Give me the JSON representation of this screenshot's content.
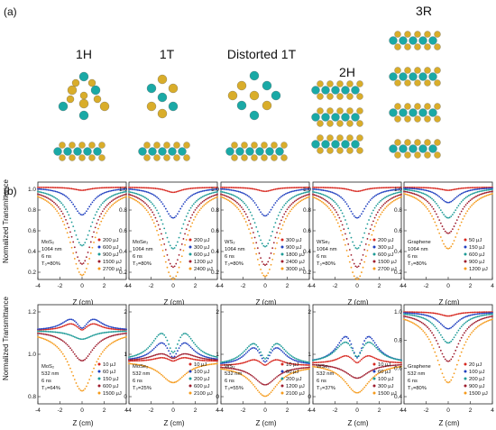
{
  "figure": {
    "panel_a": "(a)",
    "panel_b": "(b)",
    "structures": [
      "1H",
      "1T",
      "Distorted 1T",
      "2H",
      "3R"
    ],
    "colors": {
      "metal": "#1aa9a6",
      "chalcogen": "#d9ad2a"
    }
  },
  "axes": {
    "ylabel": "Normalized Transmittance",
    "xlabel": "Z (cm)",
    "xticks": [
      "-4",
      "-2",
      "0",
      "2",
      "4"
    ],
    "row1_yticks": [
      "1.0",
      "0.8",
      "0.6",
      "0.4",
      "0.2"
    ],
    "row2_yticks_a": [
      "1.2",
      "1.0",
      "0.8"
    ],
    "row2_yticks_b": [
      "2",
      "1",
      "0"
    ],
    "row2_yticks_d": [
      "2",
      "1",
      "0"
    ],
    "row2_yticks_e": [
      "1.0",
      "0.8",
      "0.6",
      "0.4"
    ]
  },
  "series_colors": [
    "#d7261e",
    "#1f3fbf",
    "#1c9a96",
    "#9e1b2c",
    "#f59a1a"
  ],
  "chart_data": [
    {
      "type": "scatter",
      "row": 1,
      "info": [
        "MoS₂",
        "1064 nm",
        "6 ns",
        "T₀=80%"
      ],
      "legend": [
        "200 μJ",
        "600 μJ",
        "900 μJ",
        "1500 μJ",
        "2700 μJ"
      ],
      "depths": [
        0.03,
        0.27,
        0.57,
        0.75,
        0.86
      ],
      "ylim": [
        0.1,
        1.05
      ],
      "xlim": [
        -4,
        4
      ],
      "reverse": false
    },
    {
      "type": "scatter",
      "row": 1,
      "info": [
        "MoSe₂",
        "1064 nm",
        "6 ns",
        "T₀=80%"
      ],
      "legend": [
        "200 μJ",
        "300 μJ",
        "600 μJ",
        "1200 μJ",
        "2400 μJ"
      ],
      "depths": [
        0.05,
        0.3,
        0.6,
        0.78,
        0.9
      ],
      "ylim": [
        0.1,
        1.05
      ],
      "xlim": [
        -4,
        4
      ],
      "reverse": false
    },
    {
      "type": "scatter",
      "row": 1,
      "info": [
        "WS₂",
        "1064 nm",
        "6 ns",
        "T₀=80%"
      ],
      "legend": [
        "300 μJ",
        "900 μJ",
        "1800 μJ",
        "2400 μJ",
        "3000 μJ"
      ],
      "depths": [
        0.04,
        0.28,
        0.58,
        0.76,
        0.87
      ],
      "ylim": [
        0.1,
        1.05
      ],
      "xlim": [
        -4,
        4
      ],
      "reverse": false
    },
    {
      "type": "scatter",
      "row": 1,
      "info": [
        "WSe₂",
        "1064 nm",
        "6 ns",
        "T₀=80%"
      ],
      "legend": [
        "200 μJ",
        "300 μJ",
        "600 μJ",
        "1500 μJ",
        "2700 μJ"
      ],
      "depths": [
        0.04,
        0.3,
        0.6,
        0.78,
        0.9
      ],
      "ylim": [
        0.1,
        1.05
      ],
      "xlim": [
        -4,
        4
      ],
      "reverse": false
    },
    {
      "type": "scatter",
      "row": 1,
      "info": [
        "Graphene",
        "1064 nm",
        "6 ns",
        "T₀=80%"
      ],
      "legend": [
        "50 μJ",
        "150 μJ",
        "600 μJ",
        "900 μJ",
        "1200 μJ"
      ],
      "depths": [
        0.03,
        0.15,
        0.3,
        0.45,
        0.6
      ],
      "ylim": [
        0.1,
        1.05
      ],
      "xlim": [
        -4,
        4
      ],
      "reverse": false
    },
    {
      "type": "scatter",
      "row": 2,
      "info": [
        "MoS₂",
        "532 nm",
        "6 ns",
        "T₀=64%"
      ],
      "legend": [
        "10 μJ",
        "60 μJ",
        "150 μJ",
        "600 μJ",
        "1500 μJ"
      ],
      "depths": [
        -0.15,
        -0.25,
        0.1,
        0.35,
        0.7
      ],
      "ylim": [
        0.15,
        1.3
      ],
      "xlim": [
        -4,
        4
      ],
      "reverse": false
    },
    {
      "type": "scatter",
      "row": 2,
      "info": [
        "MoSe₂",
        "532 nm",
        "6 ns",
        "T₀=25%"
      ],
      "legend": [
        "10 μJ",
        "100 μJ",
        "200 μJ",
        "600 μJ",
        "2100 μJ"
      ],
      "depths": [
        -0.2,
        -1.0,
        -1.5,
        -0.4,
        0.6
      ],
      "ylim": [
        -0.2,
        2.6
      ],
      "xlim": [
        -4,
        4
      ],
      "reverse": false
    },
    {
      "type": "scatter",
      "row": 2,
      "info": [
        "WS₂",
        "532 nm",
        "6 ns",
        "T₀=55%"
      ],
      "legend": [
        "10 μJ",
        "60 μJ",
        "200 μJ",
        "1200 μJ",
        "2100 μJ"
      ],
      "depths": [
        -0.3,
        -0.9,
        -1.1,
        0.5,
        0.8
      ],
      "ylim": [
        0.0,
        2.6
      ],
      "xlim": [
        -4,
        4
      ],
      "reverse": false
    },
    {
      "type": "scatter",
      "row": 2,
      "info": [
        "WSe₂",
        "532 nm",
        "6 ns",
        "T₀=37%"
      ],
      "legend": [
        "10 μJ",
        "60 μJ",
        "100 μJ",
        "300 μJ",
        "1500 μJ"
      ],
      "depths": [
        -0.4,
        -1.4,
        -1.1,
        0.4,
        0.8
      ],
      "ylim": [
        -0.1,
        2.6
      ],
      "xlim": [
        -4,
        4
      ],
      "reverse": false
    },
    {
      "type": "scatter",
      "row": 2,
      "info": [
        "Graphene",
        "532 nm",
        "6 ns",
        "T₀=80%"
      ],
      "legend": [
        "20 μJ",
        "100 μJ",
        "200 μJ",
        "900 μJ",
        "1500 μJ"
      ],
      "depths": [
        0.03,
        0.12,
        0.22,
        0.35,
        0.5
      ],
      "ylim": [
        0.35,
        1.05
      ],
      "xlim": [
        -4,
        4
      ],
      "reverse": false
    }
  ]
}
